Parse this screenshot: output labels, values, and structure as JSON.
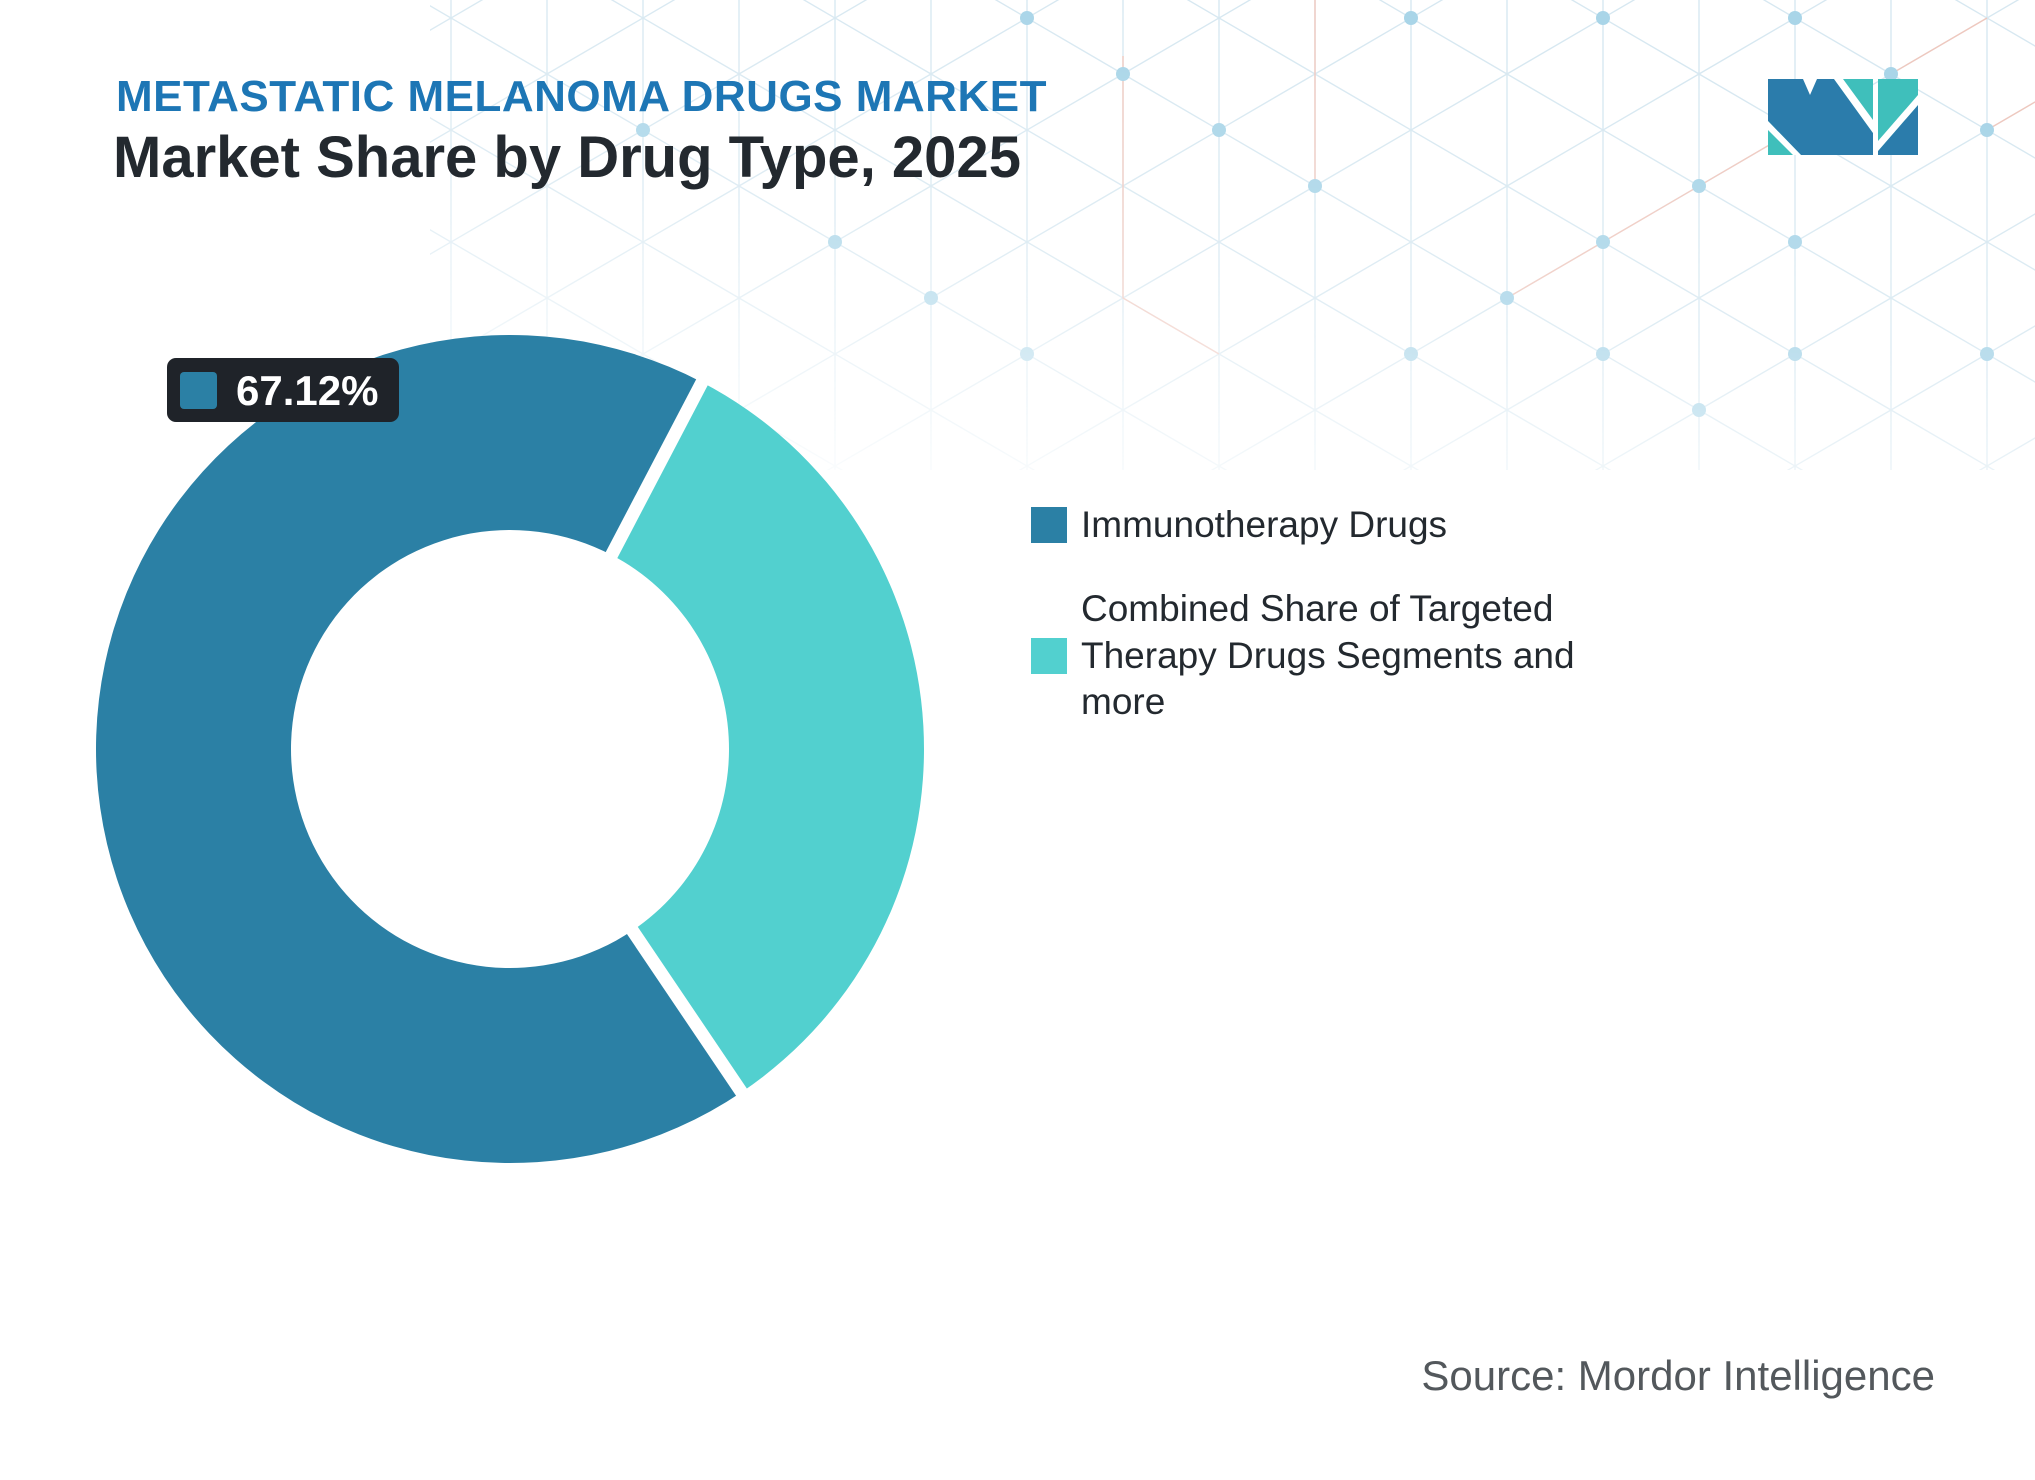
{
  "header": {
    "eyebrow": "METASTATIC MELANOMA DRUGS MARKET",
    "title": "Market Share by Drug Type, 2025"
  },
  "logo": {
    "name": "Mordor Intelligence"
  },
  "chart_data": {
    "type": "pie",
    "subtype": "donut",
    "title": "Market Share by Drug Type, 2025",
    "units": "percent",
    "start_angle_deg": 146,
    "hole_ratio": 0.53,
    "gap_between_segments": true,
    "legend_position": "right",
    "segments": [
      {
        "label": "Immunotherapy Drugs",
        "value": 67.12,
        "color": "#2b80a5"
      },
      {
        "label": "Combined Share of Targeted Therapy Drugs Segments and more",
        "value": 32.88,
        "color": "#52d0cf"
      }
    ],
    "data_labels": [
      {
        "text": "67.12%",
        "segment": "Immunotherapy Drugs",
        "swatch_color": "#2b80a5"
      }
    ]
  },
  "legend": {
    "items": [
      {
        "label": "Immunotherapy Drugs",
        "color": "#2b80a5"
      },
      {
        "label": "Combined Share of Targeted\nTherapy Drugs Segments and\nmore",
        "color": "#52d0cf"
      }
    ]
  },
  "footer": {
    "source": "Source: Mordor Intelligence"
  },
  "theme": {
    "eyebrow_color": "#1d76b5",
    "title_color": "#23292f",
    "label_box_bg": "#1f2329",
    "label_text_color": "#ffffff",
    "legend_text_color": "#23292f",
    "source_color": "#53585c",
    "pattern_line_color": "#d7e8f1",
    "pattern_accent_color": "#f4c3b6",
    "pattern_dot_color": "#a9d5e8",
    "logo_blue": "#2b7cab",
    "logo_teal": "#3fbfbb"
  }
}
